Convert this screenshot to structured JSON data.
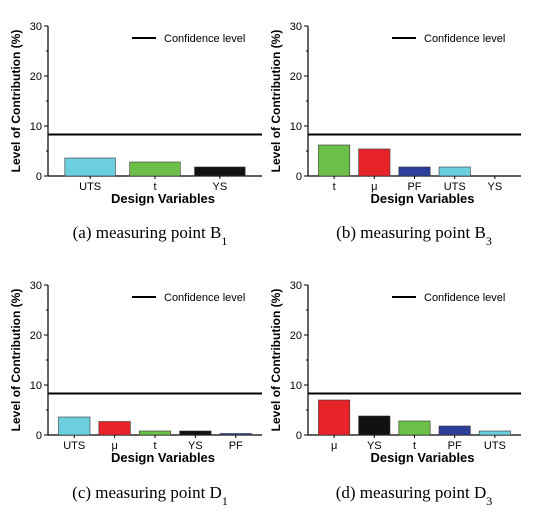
{
  "chart_data": [
    {
      "type": "bar",
      "panel": "a",
      "caption": "(a) measuring point B",
      "caption_sub": "1",
      "ylabel": "Level of Contribution (%)",
      "xlabel": "Design Variables",
      "ylim": [
        0,
        30
      ],
      "yticks": [
        "0",
        "10",
        "20",
        "30"
      ],
      "legend": "Confidence level",
      "legend_position": "top-right",
      "confidence_level": 8.3,
      "categories": [
        "UTS",
        "t",
        "YS"
      ],
      "values": [
        3.6,
        2.8,
        1.8
      ],
      "colors": [
        "#6ccfe0",
        "#6cc04a",
        "#111111"
      ]
    },
    {
      "type": "bar",
      "panel": "b",
      "caption": "(b) measuring point B",
      "caption_sub": "3",
      "ylabel": "Level of Contribution (%)",
      "xlabel": "Design Variables",
      "ylim": [
        0,
        30
      ],
      "yticks": [
        "0",
        "10",
        "20",
        "30"
      ],
      "legend": "Confidence level",
      "legend_position": "top-right",
      "confidence_level": 8.3,
      "categories": [
        "t",
        "μ",
        "PF",
        "UTS",
        "YS"
      ],
      "values": [
        6.2,
        5.4,
        1.8,
        1.8,
        0.0
      ],
      "colors": [
        "#6cc04a",
        "#e8242b",
        "#2e3f9a",
        "#6ccfe0",
        "#111111"
      ]
    },
    {
      "type": "bar",
      "panel": "c",
      "caption": "(c) measuring point D",
      "caption_sub": "1",
      "ylabel": "Level of Contribution (%)",
      "xlabel": "Design Variables",
      "ylim": [
        0,
        30
      ],
      "yticks": [
        "0",
        "10",
        "20",
        "30"
      ],
      "legend": "Confidence level",
      "legend_position": "top-right",
      "confidence_level": 8.3,
      "categories": [
        "UTS",
        "μ",
        "t",
        "YS",
        "PF"
      ],
      "values": [
        3.6,
        2.7,
        0.8,
        0.8,
        0.3
      ],
      "colors": [
        "#6ccfe0",
        "#e8242b",
        "#6cc04a",
        "#111111",
        "#2e3f9a"
      ]
    },
    {
      "type": "bar",
      "panel": "d",
      "caption": "(d) measuring point D",
      "caption_sub": "3",
      "ylabel": "Level of Contribution (%)",
      "xlabel": "Design Variables",
      "ylim": [
        0,
        30
      ],
      "yticks": [
        "0",
        "10",
        "20",
        "30"
      ],
      "legend": "Confidence level",
      "legend_position": "top-right",
      "confidence_level": 8.3,
      "categories": [
        "μ",
        "YS",
        "t",
        "PF",
        "UTS"
      ],
      "values": [
        7.0,
        3.8,
        2.8,
        1.8,
        0.8
      ],
      "colors": [
        "#e8242b",
        "#111111",
        "#6cc04a",
        "#2e3f9a",
        "#6ccfe0"
      ]
    }
  ]
}
